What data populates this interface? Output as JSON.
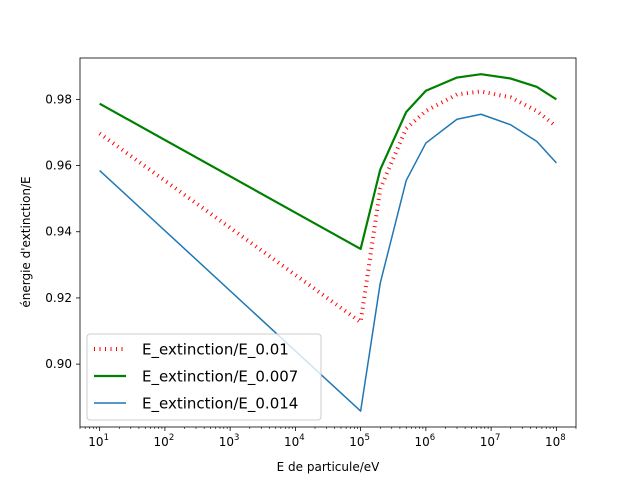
{
  "chart_data": {
    "type": "line",
    "xlabel": "E de particule/eV",
    "ylabel": "énergie d'extinction/E",
    "xscale": "log",
    "xlim": [
      5,
      200000000
    ],
    "ylim": [
      0.881,
      0.9925
    ],
    "grid": false,
    "legend_position": "lower-left",
    "x_ticks": [
      {
        "value": 10,
        "base": "10",
        "exp": "1"
      },
      {
        "value": 100,
        "base": "10",
        "exp": "2"
      },
      {
        "value": 1000,
        "base": "10",
        "exp": "3"
      },
      {
        "value": 10000,
        "base": "10",
        "exp": "4"
      },
      {
        "value": 100000,
        "base": "10",
        "exp": "5"
      },
      {
        "value": 1000000,
        "base": "10",
        "exp": "6"
      },
      {
        "value": 10000000,
        "base": "10",
        "exp": "7"
      },
      {
        "value": 100000000,
        "base": "10",
        "exp": "8"
      }
    ],
    "y_ticks": [
      {
        "value": 0.9,
        "label": "0.90"
      },
      {
        "value": 0.92,
        "label": "0.92"
      },
      {
        "value": 0.94,
        "label": "0.94"
      },
      {
        "value": 0.96,
        "label": "0.96"
      },
      {
        "value": 0.98,
        "label": "0.98"
      }
    ],
    "series": [
      {
        "name": "E_extinction/E_0.01",
        "color": "#ff0000",
        "style": "dotted",
        "points": [
          [
            10,
            0.9697
          ],
          [
            100000,
            0.9127
          ],
          [
            200000,
            0.953
          ],
          [
            500000,
            0.9712
          ],
          [
            1000000,
            0.9765
          ],
          [
            3000000,
            0.9815
          ],
          [
            7000000,
            0.9824
          ],
          [
            20000000,
            0.9806
          ],
          [
            50000000,
            0.9765
          ],
          [
            100000000,
            0.9718
          ]
        ]
      },
      {
        "name": "E_extinction/E_0.007",
        "color": "#008000",
        "style": "solid",
        "points": [
          [
            10,
            0.9787
          ],
          [
            100000,
            0.9348
          ],
          [
            200000,
            0.9588
          ],
          [
            500000,
            0.9762
          ],
          [
            1000000,
            0.9826
          ],
          [
            3000000,
            0.9866
          ],
          [
            7000000,
            0.9876
          ],
          [
            20000000,
            0.9863
          ],
          [
            50000000,
            0.9838
          ],
          [
            100000000,
            0.98
          ]
        ]
      },
      {
        "name": "E_extinction/E_0.014",
        "color": "#1f77b4",
        "style": "solid",
        "points": [
          [
            10,
            0.9585
          ],
          [
            100000,
            0.8858
          ],
          [
            200000,
            0.9245
          ],
          [
            500000,
            0.9555
          ],
          [
            1000000,
            0.9668
          ],
          [
            3000000,
            0.974
          ],
          [
            7000000,
            0.9755
          ],
          [
            20000000,
            0.9723
          ],
          [
            50000000,
            0.9673
          ],
          [
            100000000,
            0.9608
          ]
        ]
      }
    ]
  }
}
